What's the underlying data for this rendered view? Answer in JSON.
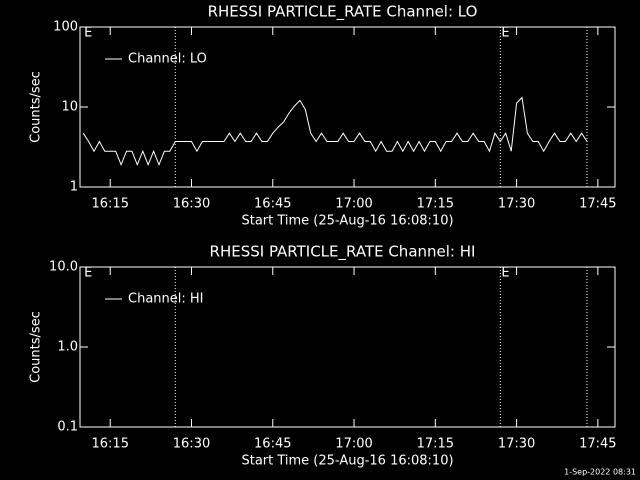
{
  "chart_data": [
    {
      "type": "line",
      "title": "RHESSI PARTICLE_RATE Channel: LO",
      "xlabel": "Start Time (25-Aug-16 16:08:10)",
      "ylabel": "Counts/sec",
      "log_y": true,
      "ylim": [
        1,
        100
      ],
      "yticks": [
        1,
        10,
        100
      ],
      "xlim": [
        "16:09:25",
        "17:48:10"
      ],
      "xticks": [
        "16:15",
        "16:30",
        "16:45",
        "17:00",
        "17:15",
        "17:30",
        "17:45"
      ],
      "events": [
        "16:27",
        "17:27",
        "17:43"
      ],
      "annotations": [
        {
          "text": "E",
          "x": "16:10"
        },
        {
          "text": "E",
          "x": "17:27"
        }
      ],
      "x": [
        "16:10",
        "16:11",
        "16:12",
        "16:13",
        "16:14",
        "16:15",
        "16:16",
        "16:17",
        "16:18",
        "16:19",
        "16:20",
        "16:21",
        "16:22",
        "16:23",
        "16:24",
        "16:25",
        "16:26",
        "16:27",
        "16:28",
        "16:29",
        "16:30",
        "16:31",
        "16:32",
        "16:33",
        "16:34",
        "16:35",
        "16:36",
        "16:37",
        "16:38",
        "16:39",
        "16:40",
        "16:41",
        "16:42",
        "16:43",
        "16:44",
        "16:45",
        "16:46",
        "16:47",
        "16:48",
        "16:49",
        "16:50",
        "16:51",
        "16:52",
        "16:53",
        "16:54",
        "16:55",
        "16:56",
        "16:57",
        "16:58",
        "16:59",
        "17:00",
        "17:01",
        "17:02",
        "17:03",
        "17:04",
        "17:05",
        "17:06",
        "17:07",
        "17:08",
        "17:09",
        "17:10",
        "17:11",
        "17:12",
        "17:13",
        "17:14",
        "17:15",
        "17:16",
        "17:17",
        "17:18",
        "17:19",
        "17:20",
        "17:21",
        "17:22",
        "17:23",
        "17:24",
        "17:25",
        "17:26",
        "17:27",
        "17:28",
        "17:29",
        "17:30",
        "17:31",
        "17:32",
        "17:33",
        "17:34",
        "17:35",
        "17:36",
        "17:37",
        "17:38",
        "17:39",
        "17:40",
        "17:41",
        "17:42",
        "17:43"
      ],
      "series": [
        {
          "name": "Channel: LO",
          "color": "#ffffff",
          "values": [
            4.7,
            3.7,
            2.8,
            3.7,
            2.8,
            2.8,
            2.8,
            1.9,
            2.8,
            2.8,
            1.9,
            2.8,
            1.9,
            2.8,
            1.9,
            2.8,
            2.8,
            3.7,
            3.7,
            3.7,
            3.7,
            2.8,
            3.7,
            3.7,
            3.7,
            3.7,
            3.7,
            4.7,
            3.7,
            4.7,
            3.7,
            3.7,
            4.7,
            3.7,
            3.7,
            4.7,
            5.6,
            6.5,
            8.4,
            10.3,
            12.1,
            9.3,
            4.7,
            3.7,
            4.7,
            3.7,
            3.7,
            3.7,
            4.7,
            3.7,
            3.7,
            4.7,
            3.7,
            3.7,
            2.8,
            3.7,
            2.8,
            2.8,
            3.7,
            2.8,
            3.7,
            2.8,
            3.7,
            2.8,
            3.7,
            3.7,
            2.8,
            3.7,
            3.7,
            4.7,
            3.7,
            3.7,
            4.7,
            3.7,
            3.7,
            2.8,
            4.7,
            3.7,
            4.7,
            2.8,
            11.2,
            13.1,
            4.7,
            3.7,
            3.7,
            2.8,
            3.7,
            4.7,
            3.7,
            3.7,
            4.7,
            3.7,
            4.7,
            3.7
          ]
        }
      ]
    },
    {
      "type": "line",
      "title": "RHESSI PARTICLE_RATE Channel: HI",
      "xlabel": "Start Time (25-Aug-16 16:08:10)",
      "ylabel": "Counts/sec",
      "log_y": true,
      "ylim": [
        0.1,
        10
      ],
      "yticks": [
        0.1,
        {
          "value": 1,
          "label": "1.0"
        },
        {
          "value": 10,
          "label": "10.0"
        }
      ],
      "xlim": [
        "16:09:25",
        "17:48:10"
      ],
      "xticks": [
        "16:15",
        "16:30",
        "16:45",
        "17:00",
        "17:15",
        "17:30",
        "17:45"
      ],
      "events": [
        "16:27",
        "17:27",
        "17:43"
      ],
      "annotations": [
        {
          "text": "E",
          "x": "16:10"
        },
        {
          "text": "E",
          "x": "17:27"
        }
      ],
      "x": [],
      "series": [
        {
          "name": "Channel: HI",
          "color": "#ffffff",
          "values": []
        }
      ]
    }
  ],
  "footer": "1-Sep-2022 08:31"
}
